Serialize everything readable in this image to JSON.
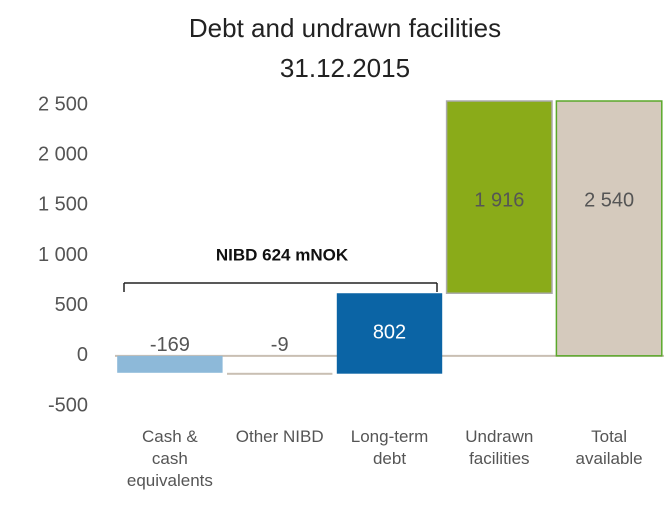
{
  "chart_data": {
    "type": "waterfall",
    "title": "Debt and undrawn facilities",
    "subtitle": "31.12.2015",
    "categories": [
      "Cash & cash equivalents",
      "Other NIBD",
      "Long-term debt",
      "Undrawn facilities",
      "Total available"
    ],
    "values": [
      -169,
      -9,
      802,
      1916,
      2540
    ],
    "value_labels": [
      "-169",
      "-9",
      "802",
      "1 916",
      "2 540"
    ],
    "measure": [
      "relative",
      "relative",
      "relative",
      "relative",
      "total"
    ],
    "colors": [
      "#8db9d9",
      "#c9bfb3",
      "#0b64a5",
      "#8aab19",
      "#d5cabd"
    ],
    "ylim": [
      -500,
      2550
    ],
    "yticks": [
      -500,
      0,
      500,
      {
        "value": 1000,
        "label": "1 000"
      },
      {
        "value": 1500,
        "label": "1 500"
      },
      {
        "value": 2000,
        "label": "2 000"
      },
      {
        "value": 2500,
        "label": "2 500"
      }
    ],
    "grid": false,
    "annotation": "NIBD 624 mNOK"
  }
}
